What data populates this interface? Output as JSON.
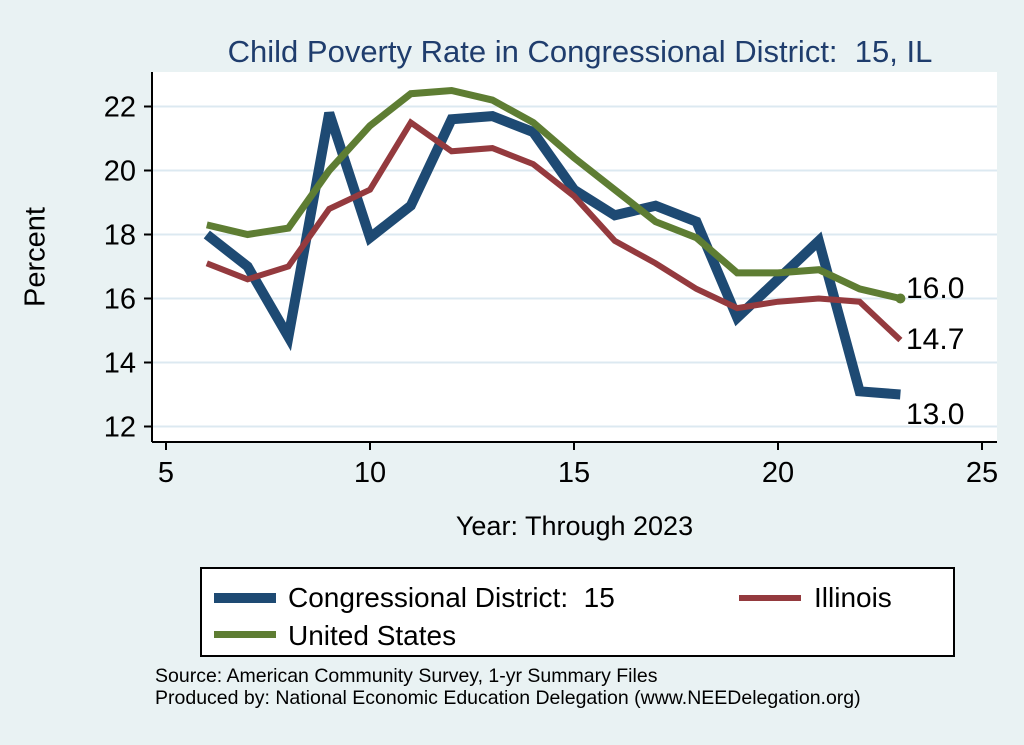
{
  "chart_data": {
    "type": "line",
    "title": "Child Poverty Rate in Congressional District:  15, IL",
    "xlabel": "Year: Through 2023",
    "ylabel": "Percent",
    "x": [
      6,
      7,
      8,
      9,
      10,
      11,
      12,
      13,
      14,
      15,
      16,
      17,
      18,
      19,
      20,
      21,
      22,
      23
    ],
    "x_ticks": [
      5,
      10,
      15,
      20,
      25
    ],
    "y_ticks": [
      12,
      14,
      16,
      18,
      20,
      22
    ],
    "xlim": [
      4.65,
      25.35
    ],
    "ylim": [
      11.5,
      23.1
    ],
    "grid": true,
    "legend_position": "bottom",
    "series": [
      {
        "name": "Congressional District:  15",
        "key": "congressional-district-15",
        "color": "#1e4a73",
        "width": 10,
        "values": [
          18.0,
          17.0,
          14.8,
          21.8,
          17.9,
          18.9,
          21.6,
          21.7,
          21.2,
          19.4,
          18.6,
          18.9,
          18.4,
          15.4,
          16.6,
          17.8,
          13.1,
          13.0
        ]
      },
      {
        "name": "Illinois",
        "key": "illinois",
        "color": "#943a3e",
        "width": 6,
        "values": [
          17.1,
          16.6,
          17.0,
          18.8,
          19.4,
          21.5,
          20.6,
          20.7,
          20.2,
          19.2,
          17.8,
          17.1,
          16.3,
          15.7,
          15.9,
          16.0,
          15.9,
          14.7
        ]
      },
      {
        "name": "United States",
        "key": "united-states",
        "color": "#5e7d33",
        "width": 7,
        "end_dot": true,
        "values": [
          18.3,
          18.0,
          18.2,
          20.0,
          21.4,
          22.4,
          22.5,
          22.2,
          21.5,
          20.4,
          19.4,
          18.4,
          17.9,
          16.8,
          16.8,
          16.9,
          16.3,
          16.0
        ]
      }
    ],
    "end_labels": [
      {
        "text": "16.0",
        "value": 16.0,
        "dy": -10
      },
      {
        "text": "14.7",
        "value": 14.7,
        "dy": 0
      },
      {
        "text": "13.0",
        "value": 13.0,
        "dy": 20
      }
    ]
  },
  "colors": {
    "background": "#e9f2f3",
    "plot_bg": "#ffffff",
    "grid": "#dce9f1",
    "axis": "#000000",
    "title": "#1f3d6d"
  },
  "source": {
    "line1": "Source: American Community Survey, 1-yr Summary Files",
    "line2": "Produced by: National Economic Education Delegation (www.NEEDelegation.org)"
  }
}
